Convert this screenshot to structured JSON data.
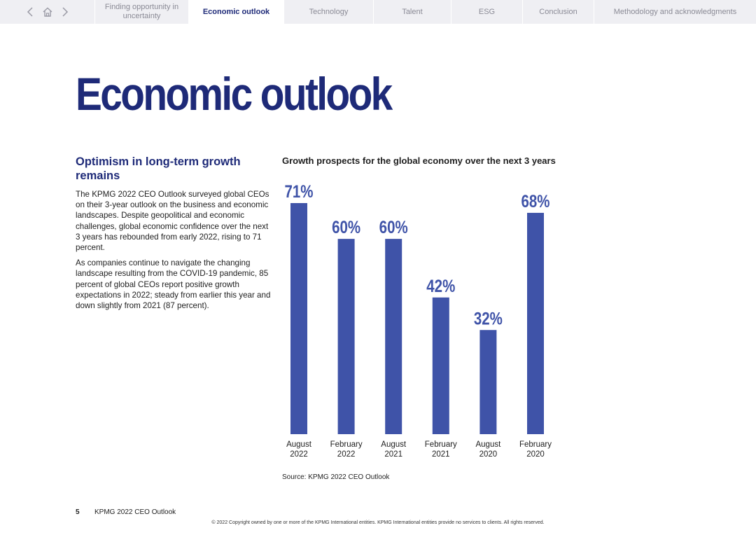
{
  "nav": {
    "tabs": [
      {
        "label": "Finding opportunity in uncertainty",
        "active": false
      },
      {
        "label": "Economic outlook",
        "active": true
      },
      {
        "label": "Technology",
        "active": false
      },
      {
        "label": "Talent",
        "active": false
      },
      {
        "label": "ESG",
        "active": false
      },
      {
        "label": "Conclusion",
        "active": false
      },
      {
        "label": "Methodology and acknowledgments",
        "active": false
      }
    ],
    "icons": [
      "chevron-left-icon",
      "home-icon",
      "chevron-right-icon"
    ]
  },
  "page": {
    "title": "Economic outlook",
    "section_heading": "Optimism in long-term growth remains",
    "paragraph1": "The KPMG 2022 CEO Outlook surveyed global CEOs on their 3-year outlook on the business and economic landscapes. Despite geopolitical and economic challenges, global economic confidence over the next 3 years has rebounded from early 2022, rising to 71 percent.",
    "paragraph2": "As companies continue to navigate the changing landscape resulting from the COVID-19 pandemic, 85 percent of global CEOs report positive growth expectations in 2022; steady from earlier this year and down slightly from 2021 (87 percent)."
  },
  "chart_data": {
    "type": "bar",
    "title": "Growth prospects for the global economy over the next 3 years",
    "categories": [
      [
        "August",
        "2022"
      ],
      [
        "February",
        "2022"
      ],
      [
        "August",
        "2021"
      ],
      [
        "February",
        "2021"
      ],
      [
        "August",
        "2020"
      ],
      [
        "February",
        "2020"
      ]
    ],
    "values": [
      71,
      60,
      60,
      42,
      32,
      68
    ],
    "value_labels": [
      "71%",
      "60%",
      "60%",
      "42%",
      "32%",
      "68%"
    ],
    "unit": "%",
    "ylim": [
      0,
      71
    ],
    "grid": false,
    "legend": "none",
    "bar_color": "#3f53a8",
    "label_color": "#3f53a8",
    "source": "Source: KPMG 2022 CEO Outlook"
  },
  "footer": {
    "page_number": "5",
    "doc_title": "KPMG 2022 CEO Outlook",
    "copyright": "© 2022 Copyright owned by one or more of the KPMG International entities. KPMG International entities provide no services to clients. All rights reserved."
  }
}
